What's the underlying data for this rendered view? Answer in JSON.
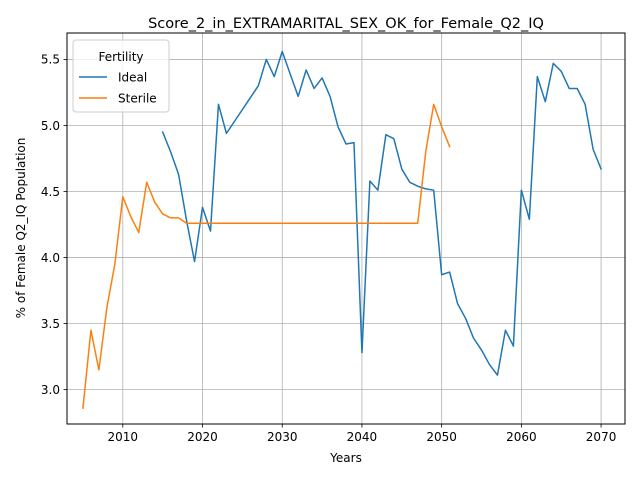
{
  "chart_data": {
    "type": "line",
    "title": "Score_2_in_EXTRAMARITAL_SEX_OK_for_Female_Q2_IQ",
    "xlabel": "Years",
    "ylabel": "% of Female Q2_IQ Population",
    "xlim": [
      2003,
      2073
    ],
    "ylim": [
      2.74,
      5.7
    ],
    "xticks": [
      2010,
      2020,
      2030,
      2040,
      2050,
      2060,
      2070
    ],
    "yticks": [
      3.0,
      3.5,
      4.0,
      4.5,
      5.0,
      5.5
    ],
    "xtick_labels": [
      "2010",
      "2020",
      "2030",
      "2040",
      "2050",
      "2060",
      "2070"
    ],
    "ytick_labels": [
      "3.0",
      "3.5",
      "4.0",
      "4.5",
      "5.0",
      "5.5"
    ],
    "grid": true,
    "legend": {
      "title": "Fertility",
      "position": "top-left"
    },
    "series": [
      {
        "name": "Ideal",
        "color": "#1f77b4",
        "x": [
          2015,
          2016,
          2017,
          2018,
          2019,
          2020,
          2021,
          2022,
          2023,
          2024,
          2025,
          2026,
          2027,
          2028,
          2029,
          2030,
          2031,
          2032,
          2033,
          2034,
          2035,
          2036,
          2037,
          2038,
          2039,
          2040,
          2041,
          2042,
          2043,
          2044,
          2045,
          2046,
          2047,
          2048,
          2049,
          2050,
          2051,
          2052,
          2053,
          2054,
          2055,
          2056,
          2057,
          2058,
          2059,
          2060,
          2061,
          2062,
          2063,
          2064,
          2065,
          2066,
          2067,
          2068,
          2069,
          2070
        ],
        "y": [
          4.95,
          4.8,
          4.63,
          4.28,
          3.97,
          4.38,
          4.2,
          5.16,
          4.94,
          5.03,
          5.12,
          5.21,
          5.3,
          5.5,
          5.37,
          5.56,
          5.39,
          5.22,
          5.42,
          5.28,
          5.36,
          5.22,
          4.99,
          4.86,
          4.87,
          3.28,
          4.58,
          4.51,
          4.93,
          4.9,
          4.67,
          4.57,
          4.54,
          4.52,
          4.51,
          3.87,
          3.89,
          3.65,
          3.54,
          3.39,
          3.3,
          3.19,
          3.11,
          3.45,
          3.33,
          4.51,
          4.29,
          5.37,
          5.18,
          5.47,
          5.41,
          5.28,
          5.28,
          5.16,
          4.82,
          4.67
        ]
      },
      {
        "name": "Sterile",
        "color": "#ff7f0e",
        "x": [
          2005,
          2006,
          2007,
          2008,
          2009,
          2010,
          2011,
          2012,
          2013,
          2014,
          2015,
          2016,
          2017,
          2018,
          2019,
          2020,
          2021,
          2022,
          2023,
          2024,
          2025,
          2026,
          2027,
          2028,
          2029,
          2030,
          2031,
          2032,
          2033,
          2034,
          2035,
          2036,
          2037,
          2038,
          2039,
          2040,
          2041,
          2042,
          2043,
          2044,
          2045,
          2046,
          2047,
          2048,
          2049,
          2050,
          2051
        ],
        "y": [
          2.86,
          3.45,
          3.15,
          3.62,
          3.95,
          4.46,
          4.31,
          4.19,
          4.57,
          4.42,
          4.33,
          4.3,
          4.3,
          4.26,
          4.26,
          4.26,
          4.26,
          4.26,
          4.26,
          4.26,
          4.26,
          4.26,
          4.26,
          4.26,
          4.26,
          4.26,
          4.26,
          4.26,
          4.26,
          4.26,
          4.26,
          4.26,
          4.26,
          4.26,
          4.26,
          4.26,
          4.26,
          4.26,
          4.26,
          4.26,
          4.26,
          4.26,
          4.26,
          4.8,
          5.16,
          4.99,
          4.84
        ]
      }
    ]
  }
}
